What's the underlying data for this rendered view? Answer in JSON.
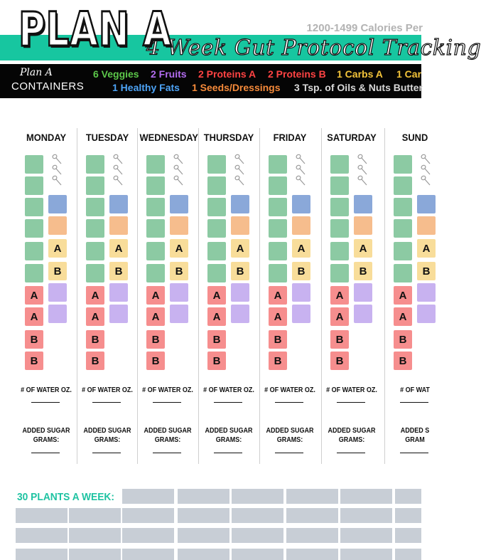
{
  "header": {
    "title": "PLAN  A",
    "calories": "1200-1499 Calories Per",
    "protocol": "4 Week Gut Protocol Tracking",
    "brand_script": "Plan A",
    "containers_label": "CONTAINERS"
  },
  "legend": [
    {
      "label": "6 Veggies",
      "color": "#5cc84a"
    },
    {
      "label": "2 Fruits",
      "color": "#b26cf0"
    },
    {
      "label": "2 Proteins A",
      "color": "#ff4343"
    },
    {
      "label": "2 Proteins B",
      "color": "#ff4343"
    },
    {
      "label": "1 Carbs A",
      "color": "#f4c43a"
    },
    {
      "label": "1 Car",
      "color": "#f4c43a"
    },
    {
      "label": "1 Healthy Fats",
      "color": "#4da3f5"
    },
    {
      "label": "1 Seeds/Dressings",
      "color": "#f58a3a"
    },
    {
      "label": "3 Tsp. of Oils & Nuts Butter",
      "color": "#d9d9d9"
    }
  ],
  "days": [
    "MONDAY",
    "TUESDAY",
    "WEDNESDAY",
    "THURSDAY",
    "FRIDAY",
    "SATURDAY",
    "SUND"
  ],
  "container_letters": {
    "carb_a": "A",
    "carb_b": "B",
    "protein_a": "A",
    "protein_b": "B"
  },
  "water_label": "# OF WATER OZ.",
  "water_label_cut": "# OF WAT",
  "sugar_label_1": "ADDED SUGAR",
  "sugar_label_2": "GRAMS:",
  "sugar_label_cut_1": "ADDED S",
  "sugar_label_cut_2": "GRAM",
  "plants": {
    "label": "30 PLANTS A WEEK:",
    "box_count": 30
  },
  "colors": {
    "veggie": "#8ccaa3",
    "healthy_fat": "#8aa8d9",
    "seeds": "#f6bd8d",
    "carbs": "#f8dd9a",
    "fruit": "#c8b2f0",
    "protein": "#f68e8e",
    "accent_green": "#17c6a0",
    "plant_cell": "#c8ced6"
  },
  "icons": [
    "teaspoon-icon"
  ]
}
